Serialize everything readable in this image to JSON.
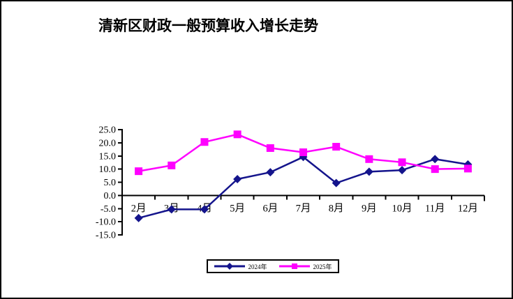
{
  "window": {
    "background": "#FFFFFF",
    "border_color": "#000000"
  },
  "chart_data": {
    "type": "line",
    "title": "清新区财政一般预算收入增长走势",
    "categories": [
      "2月",
      "3月",
      "4月",
      "5月",
      "6月",
      "7月",
      "8月",
      "9月",
      "10月",
      "11月",
      "12月"
    ],
    "series": [
      {
        "name": "2024年",
        "color": "#14148C",
        "marker": "diamond",
        "values": [
          -8.6,
          -5.3,
          -5.3,
          6.2,
          8.8,
          14.6,
          4.7,
          9.0,
          9.6,
          13.8,
          11.8
        ]
      },
      {
        "name": "2025年",
        "color": "#FF00FF",
        "marker": "square",
        "values": [
          9.2,
          11.4,
          20.3,
          23.2,
          18.0,
          16.4,
          18.5,
          13.8,
          12.6,
          10.0,
          10.2
        ]
      }
    ],
    "xlabel": "",
    "ylabel": "",
    "ylim": [
      -15.0,
      25.0
    ],
    "ytick_step": 5.0,
    "ytick_labels": [
      "25.0",
      "20.0",
      "15.0",
      "10.0",
      "5.0",
      "0.0",
      "-5.0",
      "-10.0",
      "-15.0"
    ],
    "grid": false,
    "legend_position": "bottom"
  },
  "legend": {
    "items": [
      {
        "label": "2024年",
        "color": "#14148C",
        "marker": "diamond"
      },
      {
        "label": "2025年",
        "color": "#FF00FF",
        "marker": "square"
      }
    ]
  }
}
